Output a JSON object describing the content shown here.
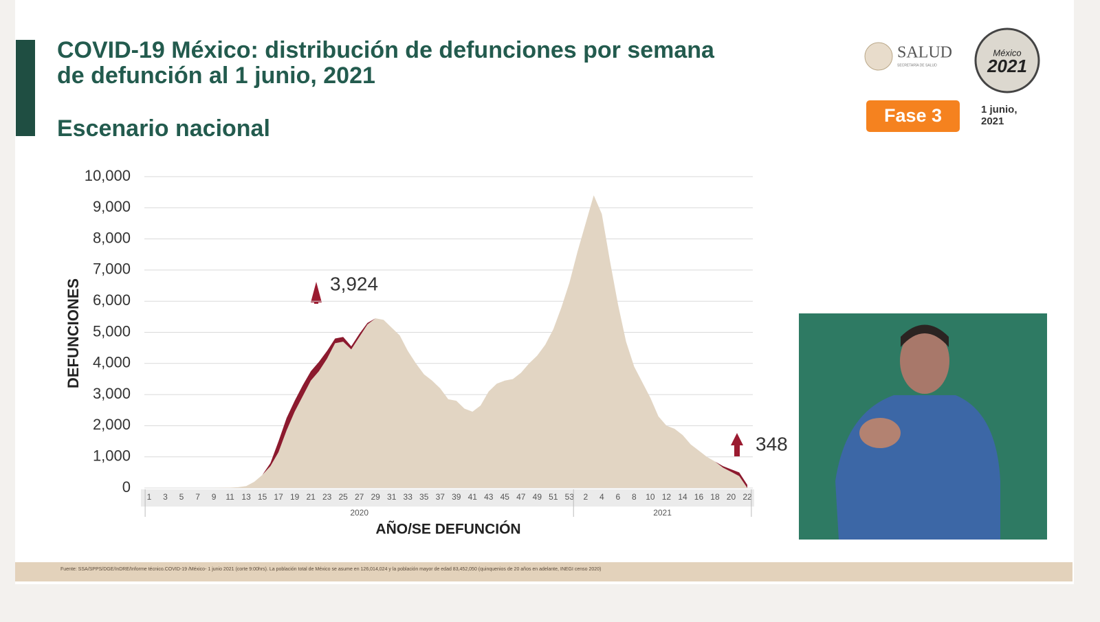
{
  "header": {
    "title_lines": [
      "COVID-19 México: distribución de defunciones por semana",
      "de defunción al 1 junio, 2021"
    ],
    "subtitle": "Escenario nacional"
  },
  "logo": {
    "name": "SALUD",
    "sub": "SECRETARÍA DE SALUD"
  },
  "badge": {
    "name": "México",
    "year": "2021"
  },
  "phase": "Fase 3",
  "date_lines": [
    "1 junio,",
    "2021"
  ],
  "footnote": "Fuente: SSA/SPPS/DGE/InDRE/Informe técnico.COVID-19 /México- 1 junio 2021 (corte 9:00hrs). La población total de México se asume en 126,014,024 y la población mayor de edad 83,452,050 (quinquenios de 20 años en adelante, INEGI censo 2020)",
  "chart_data": {
    "type": "stacked-area",
    "y_label": "DEFUNCIONES",
    "x_label": "AÑO/SE DEFUNCIÓN",
    "categories": [
      "1",
      null,
      "3",
      null,
      "5",
      null,
      "7",
      null,
      "9",
      null,
      "11",
      null,
      "13",
      null,
      "15",
      null,
      "17",
      null,
      "19",
      null,
      "21",
      null,
      "23",
      null,
      "25",
      null,
      "27",
      null,
      "29",
      null,
      "31",
      null,
      "33",
      null,
      "35",
      null,
      "37",
      null,
      "39",
      null,
      "41",
      null,
      "43",
      null,
      "45",
      null,
      "47",
      null,
      "49",
      null,
      "51",
      null,
      "53",
      null,
      "2",
      null,
      "4",
      null,
      "6",
      null,
      "8",
      null,
      "10",
      null,
      "12",
      null,
      "14",
      null,
      "16",
      null,
      "18",
      null,
      "20",
      null,
      "22"
    ],
    "groups": [
      {
        "label": "2020",
        "count": 53
      },
      {
        "label": "2021",
        "count": 22
      }
    ],
    "series": [
      {
        "color": "#e2d5c3",
        "values": [
          0,
          0,
          0,
          0,
          0,
          0,
          0,
          0,
          0,
          5,
          10,
          25,
          60,
          200,
          420,
          700,
          1150,
          1850,
          2450,
          2950,
          3450,
          3750,
          4150,
          4650,
          4700,
          4450,
          4850,
          5250,
          5450,
          5400,
          5150,
          4900,
          4400,
          4000,
          3650,
          3450,
          3200,
          2850,
          2800,
          2550,
          2450,
          2650,
          3100,
          3350,
          3450,
          3500,
          3700,
          4000,
          4250,
          4600,
          5100,
          5800,
          6600,
          7600,
          8500,
          9400,
          8800,
          7300,
          5900,
          4700,
          3900,
          3400,
          2900,
          2300,
          2000,
          1900,
          1700,
          1400,
          1200,
          1000,
          850,
          650,
          520,
          380,
          0
        ]
      },
      {
        "color": "#8c1a2e",
        "values": [
          0,
          0,
          0,
          0,
          0,
          0,
          0,
          0,
          0,
          0,
          0,
          0,
          0,
          0,
          0,
          100,
          350,
          400,
          350,
          350,
          300,
          300,
          250,
          150,
          150,
          100,
          100,
          50,
          0,
          0,
          0,
          0,
          0,
          0,
          0,
          0,
          0,
          0,
          0,
          0,
          0,
          0,
          0,
          0,
          0,
          0,
          0,
          0,
          0,
          0,
          0,
          0,
          0,
          0,
          0,
          0,
          0,
          0,
          0,
          0,
          0,
          0,
          0,
          0,
          0,
          0,
          0,
          0,
          0,
          0,
          0,
          50,
          80,
          120,
          100
        ]
      }
    ],
    "annotations": [
      {
        "text": "3,924"
      },
      {
        "text": "348"
      }
    ],
    "ylim": [
      0,
      10000
    ],
    "yticks": [
      0,
      {
        "value": 1000,
        "label": "1,000"
      },
      {
        "value": 2000,
        "label": "2,000"
      },
      {
        "value": 3000,
        "label": "3,000"
      },
      {
        "value": 4000,
        "label": "4,000"
      },
      {
        "value": 5000,
        "label": "5,000"
      },
      {
        "value": 6000,
        "label": "6,000"
      },
      {
        "value": 7000,
        "label": "7,000"
      },
      {
        "value": 8000,
        "label": "8,000"
      },
      {
        "value": 9000,
        "label": "9,000"
      },
      {
        "value": 10000,
        "label": "10,000"
      }
    ],
    "grid": true
  }
}
